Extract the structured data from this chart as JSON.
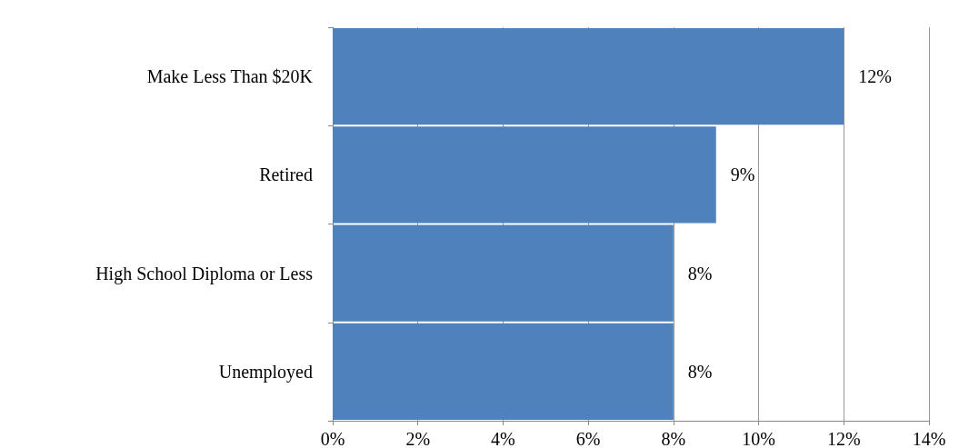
{
  "chart_data": {
    "type": "bar",
    "orientation": "horizontal",
    "categories": [
      "Make Less Than $20K",
      "Retired",
      "High School Diploma or Less",
      "Unemployed"
    ],
    "values": [
      12,
      9,
      8,
      8
    ],
    "color": "#4f81bd",
    "xlim": [
      0,
      14
    ],
    "xticks": [
      {
        "value": 0,
        "label": "0%"
      },
      {
        "value": 2,
        "label": "2%"
      },
      {
        "value": 4,
        "label": "4%"
      },
      {
        "value": 6,
        "label": "6%"
      },
      {
        "value": 8,
        "label": "8%"
      },
      {
        "value": 10,
        "label": "10%"
      },
      {
        "value": 12,
        "label": "12%"
      },
      {
        "value": 14,
        "label": "14%"
      }
    ],
    "value_labels": [
      "12%",
      "9%",
      "8%",
      "8%"
    ],
    "grid": "x"
  }
}
